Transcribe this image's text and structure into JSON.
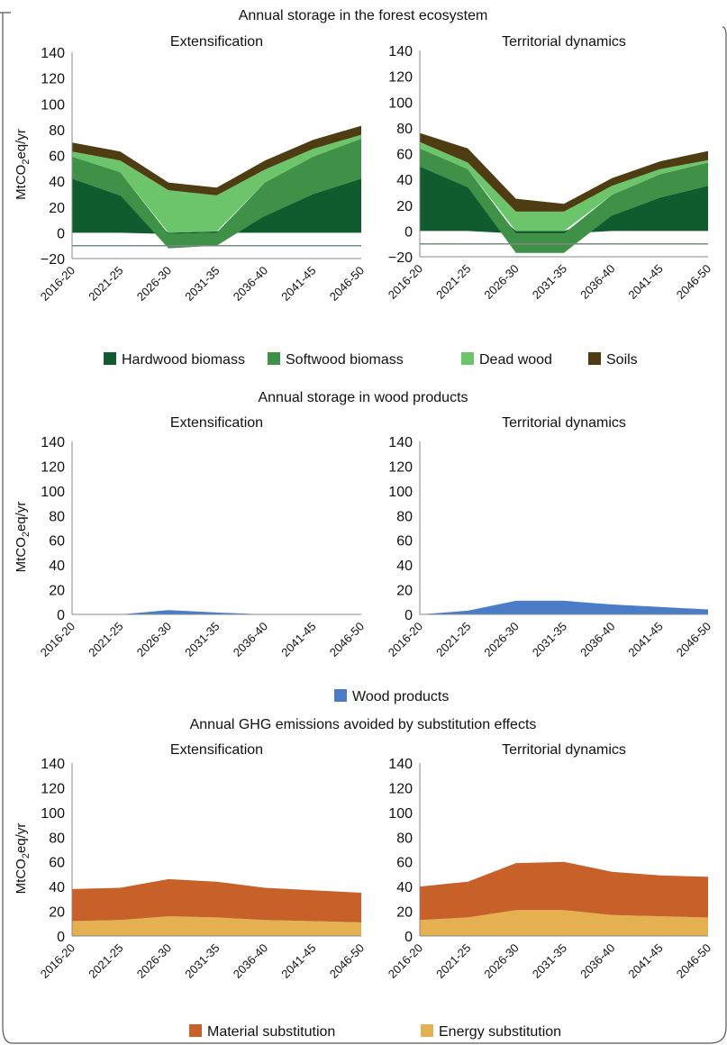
{
  "sections": [
    {
      "title": "Annual storage in the forest ecosystem",
      "legend": [
        {
          "label": "Hardwood biomass",
          "color": "#115c2e"
        },
        {
          "label": "Softwood biomass",
          "color": "#3f9147"
        },
        {
          "label": "Dead wood",
          "color": "#6cc56b"
        },
        {
          "label": "Soils",
          "color": "#4e3d12"
        }
      ]
    },
    {
      "title": "Annual storage in wood products",
      "legend": [
        {
          "label": "Wood products",
          "color": "#4a7cc7"
        }
      ]
    },
    {
      "title": "Annual GHG emissions avoided by substitution effects",
      "legend": [
        {
          "label": "Material substitution",
          "color": "#c8602a"
        },
        {
          "label": "Energy substitution",
          "color": "#e4b050"
        }
      ]
    }
  ],
  "chart_data": [
    {
      "type": "area",
      "title": "Extensification",
      "ylabel": "MtCO2eq/yr",
      "x": [
        "2016-20",
        "2021-25",
        "2026-30",
        "2031-35",
        "2036-40",
        "2041-45",
        "2046-50"
      ],
      "ylim": [
        -20,
        140
      ],
      "yticks": [
        140,
        120,
        100,
        80,
        60,
        40,
        20,
        0,
        -20
      ],
      "series": [
        {
          "name": "Hardwood biomass",
          "values": [
            42,
            29,
            -1,
            1,
            13,
            30,
            42
          ]
        },
        {
          "name": "Softwood biomass",
          "values": [
            17,
            18,
            -11,
            -10,
            26,
            29,
            31
          ]
        },
        {
          "name": "Dead wood",
          "values": [
            4,
            9,
            33,
            28,
            10,
            6,
            3
          ]
        },
        {
          "name": "Soils",
          "values": [
            7,
            7,
            6,
            6,
            7,
            7,
            7
          ]
        }
      ]
    },
    {
      "type": "area",
      "title": "Territorial dynamics",
      "ylabel": "",
      "x": [
        "2016-20",
        "2021-25",
        "2026-30",
        "2031-35",
        "2036-40",
        "2041-45",
        "2046-50"
      ],
      "ylim": [
        -20,
        140
      ],
      "yticks": [
        140,
        120,
        100,
        80,
        60,
        40,
        20,
        0,
        -20
      ],
      "series": [
        {
          "name": "Hardwood biomass",
          "values": [
            50,
            34,
            -2,
            -2,
            12,
            26,
            35
          ]
        },
        {
          "name": "Softwood biomass",
          "values": [
            14,
            14,
            -15,
            -15,
            16,
            18,
            18
          ]
        },
        {
          "name": "Dead wood",
          "values": [
            5,
            5,
            15,
            15,
            7,
            4,
            2
          ]
        },
        {
          "name": "Soils",
          "values": [
            7,
            11,
            10,
            6,
            6,
            6,
            7
          ]
        }
      ]
    },
    {
      "type": "area",
      "title": "Extensification",
      "ylabel": "MtCO2eq/yr",
      "x": [
        "2016-20",
        "2021-25",
        "2026-30",
        "2031-35",
        "2036-40",
        "2041-45",
        "2046-50"
      ],
      "ylim": [
        0,
        140
      ],
      "yticks": [
        140,
        120,
        100,
        80,
        60,
        40,
        20,
        0
      ],
      "series": [
        {
          "name": "Wood products",
          "values": [
            0,
            0,
            3.5,
            1.5,
            0,
            0,
            0
          ]
        }
      ]
    },
    {
      "type": "area",
      "title": "Territorial dynamics",
      "ylabel": "",
      "x": [
        "2016-20",
        "2021-25",
        "2026-30",
        "2031-35",
        "2036-40",
        "2041-45",
        "2046-50"
      ],
      "ylim": [
        0,
        140
      ],
      "yticks": [
        140,
        120,
        100,
        80,
        60,
        40,
        20,
        0
      ],
      "series": [
        {
          "name": "Wood products",
          "values": [
            0,
            3,
            11,
            11,
            8,
            6,
            4
          ]
        }
      ]
    },
    {
      "type": "area",
      "title": "Extensification",
      "ylabel": "MtCO2eq/yr",
      "x": [
        "2016-20",
        "2021-25",
        "2026-30",
        "2031-35",
        "2036-40",
        "2041-45",
        "2046-50"
      ],
      "ylim": [
        0,
        140
      ],
      "yticks": [
        140,
        120,
        100,
        80,
        60,
        40,
        20,
        0
      ],
      "series": [
        {
          "name": "Energy substitution",
          "values": [
            12,
            13,
            16,
            15,
            13,
            12,
            11
          ]
        },
        {
          "name": "Material substitution",
          "values": [
            26,
            26,
            30,
            29,
            26,
            25,
            24
          ]
        }
      ]
    },
    {
      "type": "area",
      "title": "Territorial dynamics",
      "ylabel": "",
      "x": [
        "2016-20",
        "2021-25",
        "2026-30",
        "2031-35",
        "2036-40",
        "2041-45",
        "2046-50"
      ],
      "ylim": [
        0,
        140
      ],
      "yticks": [
        140,
        120,
        100,
        80,
        60,
        40,
        20,
        0
      ],
      "series": [
        {
          "name": "Energy substitution",
          "values": [
            13,
            15,
            21,
            21,
            17,
            16,
            15
          ]
        },
        {
          "name": "Material substitution",
          "values": [
            27,
            29,
            38,
            39,
            35,
            33,
            33
          ]
        }
      ]
    }
  ]
}
